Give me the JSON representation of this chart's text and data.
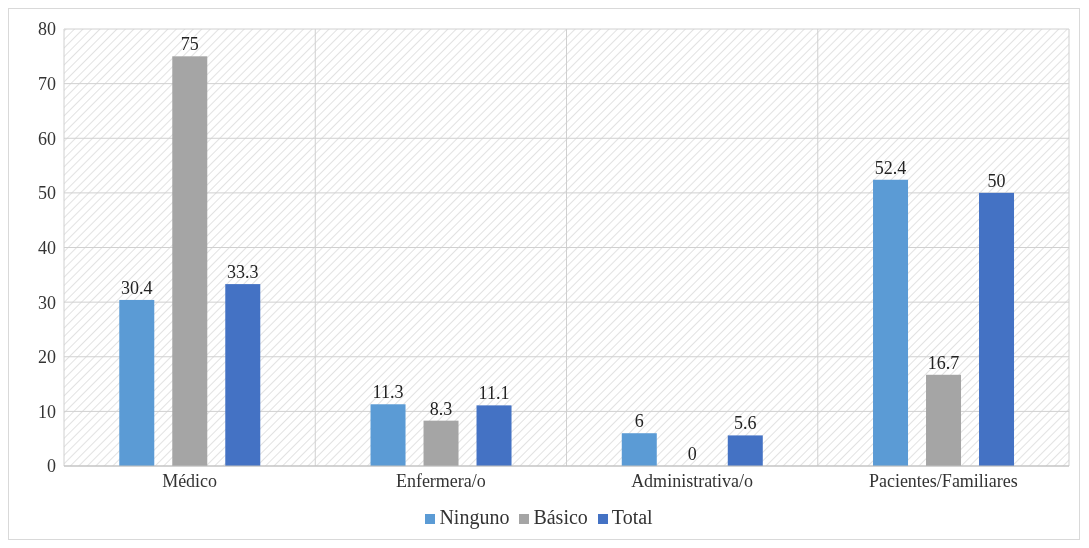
{
  "chart_data": {
    "type": "bar",
    "categories": [
      "Médico",
      "Enfermera/o",
      "Administrativa/o",
      "Pacientes/Familiares"
    ],
    "series": [
      {
        "name": "Ninguno",
        "color": "#5b9bd5",
        "values": [
          30.4,
          11.3,
          6,
          52.4
        ]
      },
      {
        "name": "Básico",
        "color": "#a5a5a5",
        "values": [
          75,
          8.3,
          0,
          16.7
        ]
      },
      {
        "name": "Total",
        "color": "#4472c4",
        "values": [
          33.3,
          11.1,
          5.6,
          50
        ]
      }
    ],
    "ylim": [
      0,
      80
    ],
    "yticks": [
      0,
      10,
      20,
      30,
      40,
      50,
      60,
      70,
      80
    ],
    "grid": true,
    "legend": "bottom",
    "data_labels": true
  }
}
